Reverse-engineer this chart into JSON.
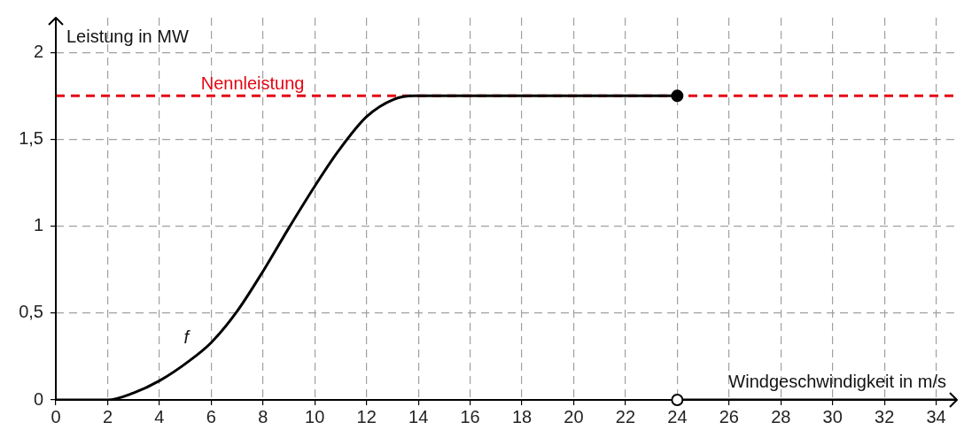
{
  "chart_data": {
    "type": "line",
    "xlabel": "Windgeschwindigkeit in m/s",
    "ylabel": "Leistung in MW",
    "xlim": [
      0,
      34.8
    ],
    "xticks": [
      0,
      2,
      4,
      6,
      8,
      10,
      12,
      14,
      16,
      18,
      20,
      22,
      24,
      26,
      28,
      30,
      32,
      34
    ],
    "ylim": [
      0,
      2.2
    ],
    "yticks": [
      0,
      {
        "value": 0.5,
        "label": "0,5"
      },
      1,
      {
        "value": 1.5,
        "label": "1,5"
      },
      2
    ],
    "grid": true,
    "legend": false,
    "marker": "none",
    "line_style": "solid",
    "series": [
      {
        "color": "#000000",
        "x": [
          0,
          2,
          3,
          4,
          5.2,
          6,
          7,
          8,
          9,
          10,
          10.9,
          12,
          13.05,
          13.85,
          18,
          24
        ],
        "values": [
          0,
          0,
          0.04,
          0.11,
          0.23,
          0.33,
          0.51,
          0.74,
          0.99,
          1.23,
          1.43,
          1.63,
          1.73,
          1.75,
          1.75,
          1.75
        ]
      },
      {
        "color": "#000000",
        "x": [
          24,
          34.8
        ],
        "values": [
          0,
          0
        ]
      },
      {
        "type": "scatter",
        "color": "#000000",
        "marker": "circle",
        "x": [
          24
        ],
        "values": [
          1.75
        ]
      },
      {
        "type": "scatter",
        "color": "#ffffff",
        "marker": "circle",
        "x": [
          24
        ],
        "values": [
          0
        ]
      }
    ],
    "ref_lines": [
      {
        "axis": "y",
        "value": 1.75,
        "label": "Nennleistung",
        "color": "#e30613",
        "line_style": "dashed"
      }
    ],
    "annotations": [
      {
        "text": "f",
        "x": 5.2,
        "y": 0.23
      }
    ]
  }
}
